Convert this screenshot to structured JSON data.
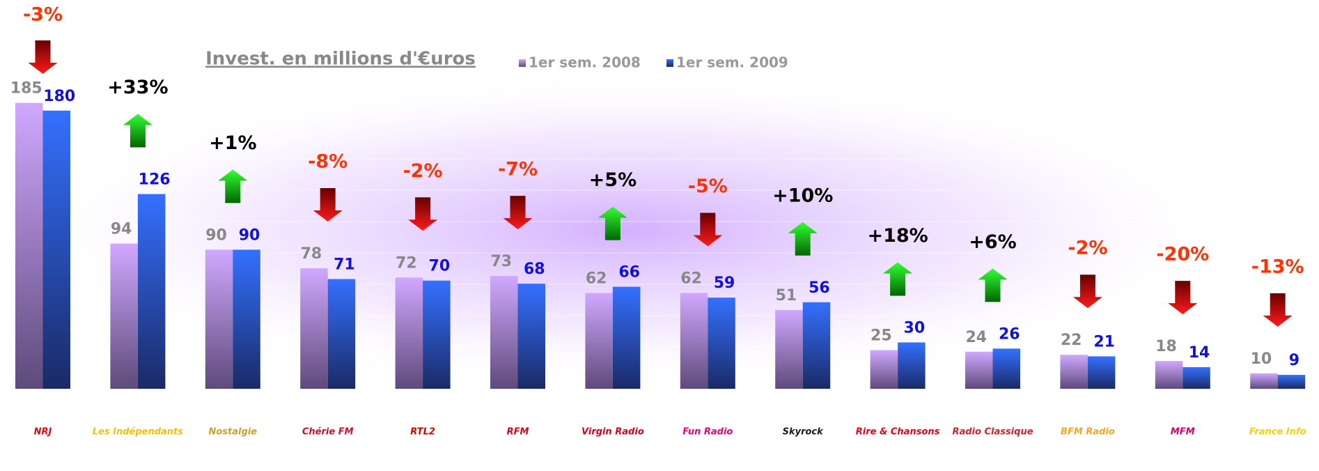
{
  "chart_data": {
    "type": "bar",
    "title": "Invest. en millions d'€uros",
    "categories": [
      "NRJ",
      "Les Indépendants",
      "Nostalgie",
      "Chérie FM",
      "RTL2",
      "RFM",
      "Virgin Radio",
      "Fun Radio",
      "Skyrock",
      "Rire & Chansons",
      "Radio Classique",
      "BFM Radio",
      "MFM",
      "France Info"
    ],
    "series": [
      {
        "name": "1er sem. 2008",
        "color": "#c9a0ff",
        "values": [
          185,
          94,
          90,
          78,
          72,
          73,
          62,
          62,
          51,
          25,
          24,
          22,
          18,
          10
        ]
      },
      {
        "name": "1er sem. 2009",
        "color": "#2e6bff",
        "values": [
          180,
          126,
          90,
          71,
          70,
          68,
          66,
          59,
          56,
          30,
          26,
          21,
          14,
          9
        ]
      }
    ],
    "changes": [
      -3,
      33,
      1,
      -8,
      -2,
      -7,
      5,
      -5,
      10,
      18,
      6,
      -2,
      -20,
      -13
    ],
    "change_labels": [
      "-3%",
      "+33%",
      "+1%",
      "-8%",
      "-2%",
      "-7%",
      "+5%",
      "-5%",
      "+10%",
      "+18%",
      "+6%",
      "-2%",
      "-20%",
      "-13%"
    ]
  }
}
